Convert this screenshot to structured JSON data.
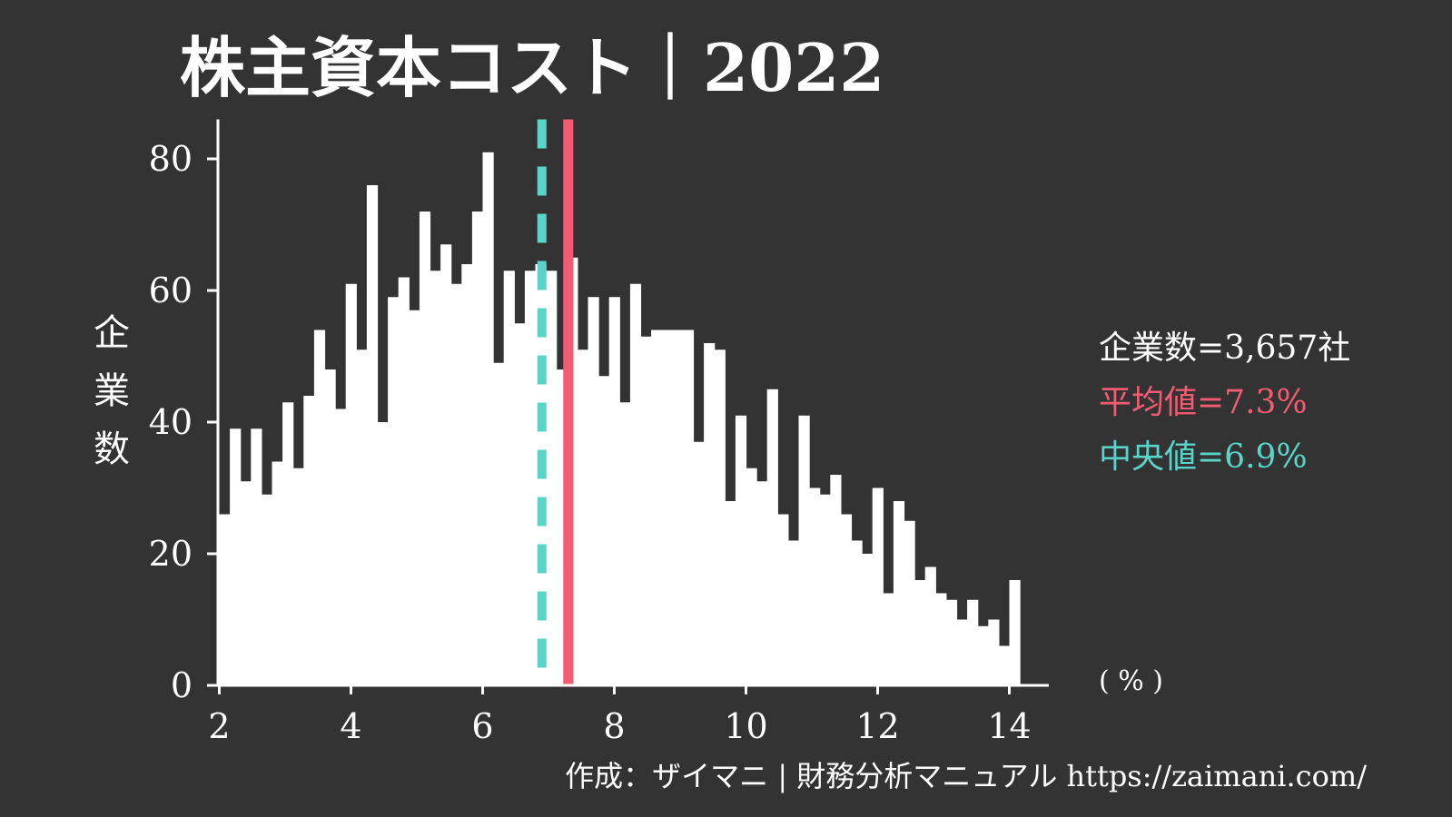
{
  "chart_data": {
    "type": "bar",
    "title": "株主資本コスト｜2022",
    "xlabel": "( % )",
    "ylabel": "企業数",
    "x_ticks": [
      "2",
      "4",
      "6",
      "8",
      "10",
      "12",
      "14"
    ],
    "y_ticks": [
      "0",
      "20",
      "40",
      "60",
      "80"
    ],
    "xlim": [
      1.4,
      14.6
    ],
    "ylim": [
      0,
      85
    ],
    "bin_start": 2.0,
    "bin_width": 0.16,
    "values": [
      26,
      39,
      31,
      39,
      29,
      34,
      43,
      33,
      44,
      54,
      48,
      42,
      61,
      51,
      76,
      40,
      59,
      62,
      57,
      72,
      63,
      67,
      61,
      64,
      72,
      81,
      49,
      63,
      55,
      63,
      64,
      63,
      48,
      65,
      51,
      59,
      47,
      59,
      43,
      61,
      53,
      54,
      54,
      54,
      54,
      37,
      52,
      51,
      28,
      41,
      33,
      31,
      45,
      26,
      22,
      41,
      30,
      29,
      32,
      26,
      22,
      20,
      30,
      14,
      28,
      25,
      16,
      18,
      14,
      13,
      10,
      13,
      9,
      10,
      6,
      16
    ],
    "colors": {
      "background": "#333333",
      "bars": "#ffffff",
      "mean": "#f25c72",
      "median": "#5ad4c8"
    },
    "mean": 7.3,
    "median": 6.9,
    "annotations": {
      "count": "企業数=3,657社",
      "mean": "平均値=7.3%",
      "median": "中央値=6.9%"
    },
    "grid": false
  },
  "credit": "作成：ザイマニ | 財務分析マニュアル https://zaimani.com/"
}
